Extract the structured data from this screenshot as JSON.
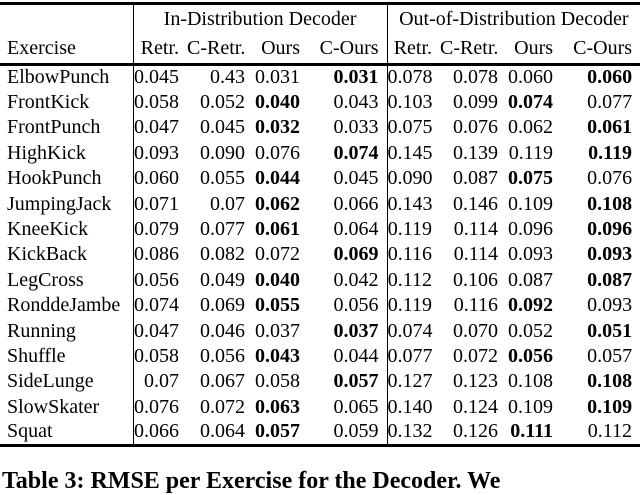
{
  "table": {
    "group_headers": {
      "in_dist": "In-Distribution Decoder",
      "out_dist": "Out-of-Distribution Decoder"
    },
    "exercise_header": "Exercise",
    "sub_headers": [
      "Retr.",
      "C-Retr.",
      "Ours",
      "C-Ours"
    ],
    "rows": [
      {
        "exercise": "ElbowPunch",
        "in_dist": [
          "0.045",
          "0.43",
          "0.031",
          "0.031"
        ],
        "in_dist_bold": [
          false,
          false,
          false,
          true
        ],
        "out_dist": [
          "0.078",
          "0.078",
          "0.060",
          "0.060"
        ],
        "out_dist_bold": [
          false,
          false,
          false,
          true
        ]
      },
      {
        "exercise": "FrontKick",
        "in_dist": [
          "0.058",
          "0.052",
          "0.040",
          "0.043"
        ],
        "in_dist_bold": [
          false,
          false,
          true,
          false
        ],
        "out_dist": [
          "0.103",
          "0.099",
          "0.074",
          "0.077"
        ],
        "out_dist_bold": [
          false,
          false,
          true,
          false
        ]
      },
      {
        "exercise": "FrontPunch",
        "in_dist": [
          "0.047",
          "0.045",
          "0.032",
          "0.033"
        ],
        "in_dist_bold": [
          false,
          false,
          true,
          false
        ],
        "out_dist": [
          "0.075",
          "0.076",
          "0.062",
          "0.061"
        ],
        "out_dist_bold": [
          false,
          false,
          false,
          true
        ]
      },
      {
        "exercise": "HighKick",
        "in_dist": [
          "0.093",
          "0.090",
          "0.076",
          "0.074"
        ],
        "in_dist_bold": [
          false,
          false,
          false,
          true
        ],
        "out_dist": [
          "0.145",
          "0.139",
          "0.119",
          "0.119"
        ],
        "out_dist_bold": [
          false,
          false,
          false,
          true
        ]
      },
      {
        "exercise": "HookPunch",
        "in_dist": [
          "0.060",
          "0.055",
          "0.044",
          "0.045"
        ],
        "in_dist_bold": [
          false,
          false,
          true,
          false
        ],
        "out_dist": [
          "0.090",
          "0.087",
          "0.075",
          "0.076"
        ],
        "out_dist_bold": [
          false,
          false,
          true,
          false
        ]
      },
      {
        "exercise": "JumpingJack",
        "in_dist": [
          "0.071",
          "0.07",
          "0.062",
          "0.066"
        ],
        "in_dist_bold": [
          false,
          false,
          true,
          false
        ],
        "out_dist": [
          "0.143",
          "0.146",
          "0.109",
          "0.108"
        ],
        "out_dist_bold": [
          false,
          false,
          false,
          true
        ]
      },
      {
        "exercise": "KneeKick",
        "in_dist": [
          "0.079",
          "0.077",
          "0.061",
          "0.064"
        ],
        "in_dist_bold": [
          false,
          false,
          true,
          false
        ],
        "out_dist": [
          "0.119",
          "0.114",
          "0.096",
          "0.096"
        ],
        "out_dist_bold": [
          false,
          false,
          false,
          true
        ]
      },
      {
        "exercise": "KickBack",
        "in_dist": [
          "0.086",
          "0.082",
          "0.072",
          "0.069"
        ],
        "in_dist_bold": [
          false,
          false,
          false,
          true
        ],
        "out_dist": [
          "0.116",
          "0.114",
          "0.093",
          "0.093"
        ],
        "out_dist_bold": [
          false,
          false,
          false,
          true
        ]
      },
      {
        "exercise": "LegCross",
        "in_dist": [
          "0.056",
          "0.049",
          "0.040",
          "0.042"
        ],
        "in_dist_bold": [
          false,
          false,
          true,
          false
        ],
        "out_dist": [
          "0.112",
          "0.106",
          "0.087",
          "0.087"
        ],
        "out_dist_bold": [
          false,
          false,
          false,
          true
        ]
      },
      {
        "exercise": "RonddeJambe",
        "in_dist": [
          "0.074",
          "0.069",
          "0.055",
          "0.056"
        ],
        "in_dist_bold": [
          false,
          false,
          true,
          false
        ],
        "out_dist": [
          "0.119",
          "0.116",
          "0.092",
          "0.093"
        ],
        "out_dist_bold": [
          false,
          false,
          true,
          false
        ]
      },
      {
        "exercise": "Running",
        "in_dist": [
          "0.047",
          "0.046",
          "0.037",
          "0.037"
        ],
        "in_dist_bold": [
          false,
          false,
          false,
          true
        ],
        "out_dist": [
          "0.074",
          "0.070",
          "0.052",
          "0.051"
        ],
        "out_dist_bold": [
          false,
          false,
          false,
          true
        ]
      },
      {
        "exercise": "Shuffle",
        "in_dist": [
          "0.058",
          "0.056",
          "0.043",
          "0.044"
        ],
        "in_dist_bold": [
          false,
          false,
          true,
          false
        ],
        "out_dist": [
          "0.077",
          "0.072",
          "0.056",
          "0.057"
        ],
        "out_dist_bold": [
          false,
          false,
          true,
          false
        ]
      },
      {
        "exercise": "SideLunge",
        "in_dist": [
          "0.07",
          "0.067",
          "0.058",
          "0.057"
        ],
        "in_dist_bold": [
          false,
          false,
          false,
          true
        ],
        "out_dist": [
          "0.127",
          "0.123",
          "0.108",
          "0.108"
        ],
        "out_dist_bold": [
          false,
          false,
          false,
          true
        ]
      },
      {
        "exercise": "SlowSkater",
        "in_dist": [
          "0.076",
          "0.072",
          "0.063",
          "0.065"
        ],
        "in_dist_bold": [
          false,
          false,
          true,
          false
        ],
        "out_dist": [
          "0.140",
          "0.124",
          "0.109",
          "0.109"
        ],
        "out_dist_bold": [
          false,
          false,
          false,
          true
        ]
      },
      {
        "exercise": "Squat",
        "in_dist": [
          "0.066",
          "0.064",
          "0.057",
          "0.059"
        ],
        "in_dist_bold": [
          false,
          false,
          true,
          false
        ],
        "out_dist": [
          "0.132",
          "0.126",
          "0.111",
          "0.112"
        ],
        "out_dist_bold": [
          false,
          false,
          true,
          false
        ]
      }
    ]
  },
  "caption": "Table 3: RMSE per Exercise for the Decoder. We",
  "colors": {
    "text": "#000000",
    "background": "#ffffff",
    "rule": "#000000"
  }
}
